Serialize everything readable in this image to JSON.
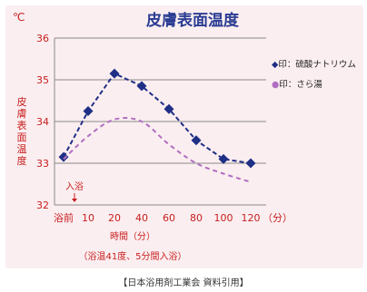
{
  "chart_data": {
    "type": "line",
    "title": "皮膚表面温度",
    "unit_label": "℃",
    "ylabel": "皮膚表面温度",
    "xlabel": "時間（分）",
    "x_unit": "（分）",
    "categories": [
      "浴前",
      "10",
      "20",
      "40",
      "60",
      "80",
      "100",
      "120"
    ],
    "ylim": [
      32,
      36
    ],
    "yticks": [
      "32",
      "33",
      "34",
      "35",
      "36"
    ],
    "series": [
      {
        "name": "◆印：硫酸ナトリウム",
        "style": "dashed-with-diamonds",
        "color": "#1f2f86",
        "values": [
          33.15,
          34.25,
          35.15,
          34.85,
          34.3,
          33.55,
          33.1,
          33.0
        ]
      },
      {
        "name": "●印：さら湯",
        "style": "dashed",
        "color": "#b06ec2",
        "values": [
          33.1,
          33.65,
          34.05,
          34.0,
          33.45,
          33.0,
          32.75,
          32.55
        ]
      }
    ],
    "annotation_entry": "入浴",
    "annotation_bottom": "（浴温41度、5分間入浴）",
    "colors": {
      "background": "#fbeef0",
      "title": "#2a3c93",
      "axis_text": "#c81e1e",
      "grid": "#8a8a8a"
    }
  },
  "source": "【日本浴用剤工業会 資料引用】"
}
